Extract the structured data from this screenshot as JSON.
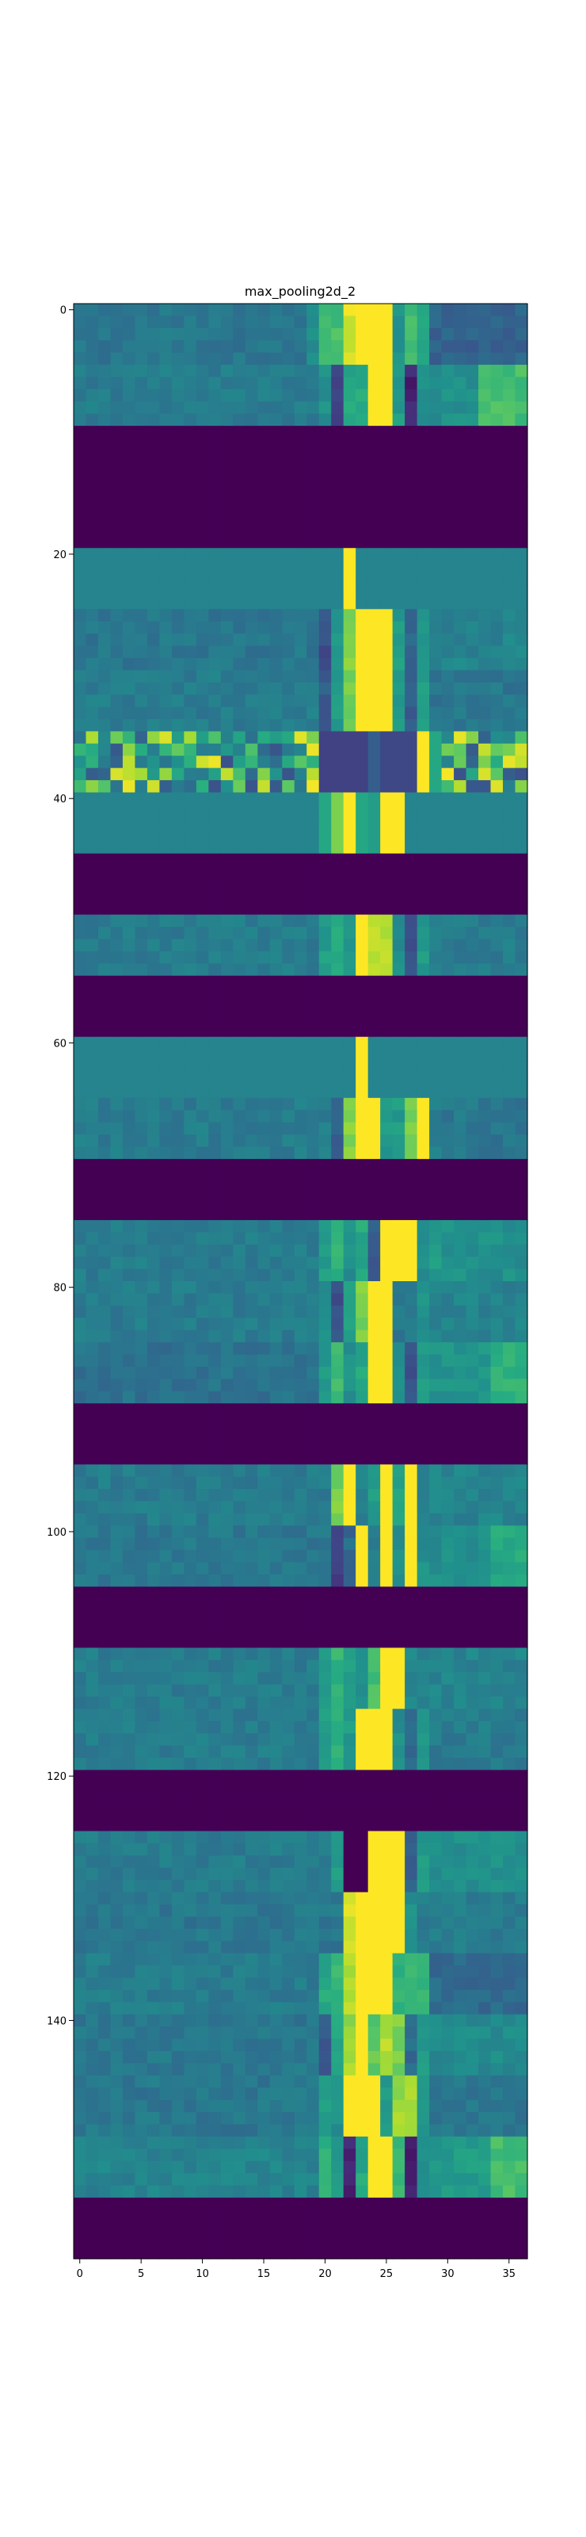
{
  "chart_data": {
    "type": "heatmap",
    "title": "max_pooling2d_2",
    "xlabel": "",
    "ylabel": "",
    "colormap": "viridis",
    "colors": [
      "#440154",
      "#3b528b",
      "#21918c",
      "#5ec962",
      "#fde725"
    ],
    "n_cols": 37,
    "n_rows": 160,
    "xlim": [
      -0.5,
      36.5
    ],
    "ylim": [
      159.5,
      -0.5
    ],
    "xticks": [
      0,
      5,
      10,
      15,
      20,
      25,
      30,
      35
    ],
    "yticks": [
      0,
      20,
      40,
      60,
      80,
      100,
      120,
      140
    ],
    "grid": false,
    "bands": [
      {
        "rows": [
          0,
          4
        ],
        "kind": "texture",
        "segments": [
          [
            0,
            19,
            0.4
          ],
          [
            19,
            20,
            0.5
          ],
          [
            20,
            22,
            0.7
          ],
          [
            22,
            23,
            0.95
          ],
          [
            23,
            26,
            1.0
          ],
          [
            26,
            27,
            0.5
          ],
          [
            27,
            28,
            0.7
          ],
          [
            28,
            29,
            0.6
          ],
          [
            29,
            37,
            0.32
          ]
        ]
      },
      {
        "rows": [
          5,
          9
        ],
        "kind": "texture",
        "segments": [
          [
            0,
            20,
            0.42
          ],
          [
            20,
            21,
            0.5
          ],
          [
            21,
            22,
            0.2
          ],
          [
            22,
            24,
            0.6
          ],
          [
            24,
            26,
            1.0
          ],
          [
            26,
            27,
            0.55
          ],
          [
            27,
            28,
            0.1
          ],
          [
            28,
            29,
            0.5
          ],
          [
            29,
            33,
            0.5
          ],
          [
            33,
            37,
            0.7
          ]
        ]
      },
      {
        "rows": [
          10,
          19
        ],
        "kind": "flat",
        "v": 0.0
      },
      {
        "rows": [
          20,
          24
        ],
        "kind": "flat",
        "v": 0.45,
        "segments": [
          [
            22,
            23,
            1.0
          ]
        ]
      },
      {
        "rows": [
          25,
          29
        ],
        "kind": "texture",
        "segments": [
          [
            0,
            20,
            0.4
          ],
          [
            20,
            21,
            0.25
          ],
          [
            21,
            22,
            0.55
          ],
          [
            22,
            23,
            0.8
          ],
          [
            23,
            26,
            1.0
          ],
          [
            26,
            27,
            0.55
          ],
          [
            27,
            28,
            0.35
          ],
          [
            28,
            29,
            0.55
          ],
          [
            29,
            37,
            0.45
          ]
        ]
      },
      {
        "rows": [
          30,
          34
        ],
        "kind": "texture",
        "segments": [
          [
            0,
            20,
            0.42
          ],
          [
            20,
            21,
            0.3
          ],
          [
            21,
            22,
            0.55
          ],
          [
            22,
            23,
            0.8
          ],
          [
            23,
            26,
            1.0
          ],
          [
            26,
            27,
            0.55
          ],
          [
            27,
            28,
            0.3
          ],
          [
            28,
            29,
            0.55
          ],
          [
            29,
            37,
            0.4
          ]
        ]
      },
      {
        "rows": [
          35,
          39
        ],
        "kind": "noisy",
        "segments": [
          [
            20,
            24,
            0.2
          ],
          [
            24,
            25,
            0.3
          ],
          [
            25,
            28,
            0.22
          ],
          [
            28,
            29,
            1.0
          ],
          [
            29,
            30,
            0.6
          ]
        ]
      },
      {
        "rows": [
          40,
          44
        ],
        "kind": "flat",
        "v": 0.45,
        "segments": [
          [
            20,
            21,
            0.6
          ],
          [
            21,
            22,
            0.8
          ],
          [
            22,
            23,
            1.0
          ],
          [
            23,
            24,
            0.6
          ],
          [
            24,
            25,
            0.55
          ],
          [
            25,
            27,
            1.0
          ]
        ]
      },
      {
        "rows": [
          45,
          49
        ],
        "kind": "flat",
        "v": 0.0
      },
      {
        "rows": [
          50,
          54
        ],
        "kind": "texture",
        "segments": [
          [
            0,
            20,
            0.42
          ],
          [
            20,
            21,
            0.55
          ],
          [
            21,
            22,
            0.6
          ],
          [
            22,
            23,
            0.5
          ],
          [
            23,
            24,
            1.0
          ],
          [
            24,
            26,
            0.9
          ],
          [
            26,
            27,
            0.5
          ],
          [
            27,
            28,
            0.25
          ],
          [
            28,
            29,
            0.55
          ],
          [
            29,
            37,
            0.42
          ]
        ]
      },
      {
        "rows": [
          55,
          59
        ],
        "kind": "flat",
        "v": 0.0
      },
      {
        "rows": [
          60,
          64
        ],
        "kind": "flat",
        "v": 0.45,
        "segments": [
          [
            23,
            24,
            1.0
          ]
        ]
      },
      {
        "rows": [
          65,
          69
        ],
        "kind": "texture",
        "segments": [
          [
            0,
            21,
            0.42
          ],
          [
            21,
            22,
            0.3
          ],
          [
            22,
            23,
            0.8
          ],
          [
            23,
            25,
            1.0
          ],
          [
            25,
            27,
            0.55
          ],
          [
            27,
            28,
            0.8
          ],
          [
            28,
            29,
            1.0
          ],
          [
            29,
            30,
            0.45
          ],
          [
            30,
            37,
            0.4
          ]
        ]
      },
      {
        "rows": [
          70,
          74
        ],
        "kind": "flat",
        "v": 0.0
      },
      {
        "rows": [
          75,
          79
        ],
        "kind": "texture",
        "segments": [
          [
            0,
            20,
            0.42
          ],
          [
            20,
            21,
            0.55
          ],
          [
            21,
            22,
            0.65
          ],
          [
            22,
            23,
            0.5
          ],
          [
            23,
            24,
            0.6
          ],
          [
            24,
            25,
            0.3
          ],
          [
            25,
            28,
            1.0
          ],
          [
            28,
            29,
            0.5
          ],
          [
            29,
            30,
            0.55
          ],
          [
            30,
            37,
            0.5
          ]
        ]
      },
      {
        "rows": [
          80,
          84
        ],
        "kind": "texture",
        "segments": [
          [
            0,
            20,
            0.42
          ],
          [
            20,
            21,
            0.5
          ],
          [
            21,
            22,
            0.25
          ],
          [
            22,
            23,
            0.55
          ],
          [
            23,
            24,
            0.8
          ],
          [
            24,
            26,
            1.0
          ],
          [
            26,
            28,
            0.4
          ],
          [
            28,
            29,
            0.5
          ],
          [
            29,
            37,
            0.45
          ]
        ]
      },
      {
        "rows": [
          85,
          89
        ],
        "kind": "texture",
        "segments": [
          [
            0,
            20,
            0.38
          ],
          [
            20,
            21,
            0.55
          ],
          [
            21,
            22,
            0.7
          ],
          [
            22,
            23,
            0.5
          ],
          [
            23,
            24,
            0.6
          ],
          [
            24,
            26,
            1.0
          ],
          [
            26,
            27,
            0.5
          ],
          [
            27,
            28,
            0.25
          ],
          [
            28,
            29,
            0.55
          ],
          [
            29,
            34,
            0.52
          ],
          [
            34,
            37,
            0.65
          ]
        ]
      },
      {
        "rows": [
          90,
          94
        ],
        "kind": "flat",
        "v": 0.0
      },
      {
        "rows": [
          95,
          99
        ],
        "kind": "texture",
        "segments": [
          [
            0,
            21,
            0.42
          ],
          [
            21,
            22,
            0.8
          ],
          [
            22,
            23,
            1.0
          ],
          [
            23,
            24,
            0.45
          ],
          [
            24,
            25,
            0.55
          ],
          [
            25,
            26,
            1.0
          ],
          [
            26,
            27,
            0.6
          ],
          [
            27,
            28,
            1.0
          ],
          [
            28,
            29,
            0.45
          ],
          [
            29,
            37,
            0.45
          ]
        ]
      },
      {
        "rows": [
          100,
          104
        ],
        "kind": "texture",
        "segments": [
          [
            0,
            21,
            0.4
          ],
          [
            21,
            22,
            0.2
          ],
          [
            22,
            23,
            0.35
          ],
          [
            23,
            24,
            1.0
          ],
          [
            24,
            25,
            0.4
          ],
          [
            25,
            26,
            1.0
          ],
          [
            26,
            27,
            0.5
          ],
          [
            27,
            28,
            1.0
          ],
          [
            28,
            29,
            0.5
          ],
          [
            29,
            34,
            0.5
          ],
          [
            34,
            37,
            0.6
          ]
        ]
      },
      {
        "rows": [
          105,
          109
        ],
        "kind": "flat",
        "v": 0.0
      },
      {
        "rows": [
          110,
          114
        ],
        "kind": "texture",
        "segments": [
          [
            0,
            20,
            0.42
          ],
          [
            20,
            21,
            0.55
          ],
          [
            21,
            22,
            0.65
          ],
          [
            22,
            23,
            0.55
          ],
          [
            23,
            24,
            0.5
          ],
          [
            24,
            25,
            0.7
          ],
          [
            25,
            27,
            1.0
          ],
          [
            27,
            28,
            0.45
          ],
          [
            28,
            37,
            0.45
          ]
        ]
      },
      {
        "rows": [
          115,
          119
        ],
        "kind": "texture",
        "segments": [
          [
            0,
            20,
            0.42
          ],
          [
            20,
            21,
            0.55
          ],
          [
            21,
            22,
            0.65
          ],
          [
            22,
            23,
            0.55
          ],
          [
            23,
            26,
            1.0
          ],
          [
            26,
            27,
            0.5
          ],
          [
            27,
            28,
            0.35
          ],
          [
            28,
            29,
            0.55
          ],
          [
            29,
            37,
            0.42
          ]
        ]
      },
      {
        "rows": [
          120,
          124
        ],
        "kind": "flat",
        "v": 0.0
      },
      {
        "rows": [
          125,
          129
        ],
        "kind": "texture",
        "segments": [
          [
            0,
            21,
            0.42
          ],
          [
            21,
            22,
            0.55
          ],
          [
            22,
            24,
            0.0
          ],
          [
            24,
            27,
            1.0
          ],
          [
            27,
            28,
            0.3
          ],
          [
            28,
            29,
            0.55
          ],
          [
            29,
            37,
            0.5
          ]
        ]
      },
      {
        "rows": [
          130,
          134
        ],
        "kind": "texture",
        "segments": [
          [
            0,
            22,
            0.4
          ],
          [
            22,
            23,
            0.95
          ],
          [
            23,
            27,
            1.0
          ],
          [
            27,
            28,
            0.5
          ],
          [
            28,
            37,
            0.42
          ]
        ]
      },
      {
        "rows": [
          135,
          139
        ],
        "kind": "texture",
        "segments": [
          [
            0,
            20,
            0.42
          ],
          [
            20,
            21,
            0.6
          ],
          [
            21,
            22,
            0.65
          ],
          [
            22,
            23,
            0.9
          ],
          [
            23,
            26,
            1.0
          ],
          [
            26,
            29,
            0.65
          ],
          [
            29,
            37,
            0.35
          ]
        ]
      },
      {
        "rows": [
          140,
          144
        ],
        "kind": "texture",
        "segments": [
          [
            0,
            20,
            0.4
          ],
          [
            20,
            21,
            0.3
          ],
          [
            21,
            22,
            0.6
          ],
          [
            22,
            23,
            0.85
          ],
          [
            23,
            24,
            1.0
          ],
          [
            24,
            25,
            0.75
          ],
          [
            25,
            26,
            0.9
          ],
          [
            26,
            27,
            0.8
          ],
          [
            27,
            28,
            0.35
          ],
          [
            28,
            29,
            0.55
          ],
          [
            29,
            37,
            0.48
          ]
        ]
      },
      {
        "rows": [
          145,
          149
        ],
        "kind": "texture",
        "segments": [
          [
            0,
            20,
            0.4
          ],
          [
            20,
            21,
            0.55
          ],
          [
            21,
            22,
            0.5
          ],
          [
            22,
            25,
            1.0
          ],
          [
            25,
            26,
            0.55
          ],
          [
            26,
            28,
            0.85
          ],
          [
            28,
            29,
            0.5
          ],
          [
            29,
            37,
            0.4
          ]
        ]
      },
      {
        "rows": [
          150,
          154
        ],
        "kind": "texture",
        "segments": [
          [
            0,
            20,
            0.45
          ],
          [
            20,
            21,
            0.65
          ],
          [
            21,
            22,
            0.55
          ],
          [
            22,
            23,
            0.1
          ],
          [
            23,
            24,
            0.6
          ],
          [
            24,
            26,
            1.0
          ],
          [
            26,
            27,
            0.65
          ],
          [
            27,
            28,
            0.1
          ],
          [
            28,
            29,
            0.5
          ],
          [
            29,
            34,
            0.55
          ],
          [
            34,
            37,
            0.7
          ]
        ]
      },
      {
        "rows": [
          155,
          159
        ],
        "kind": "flat",
        "v": 0.0
      }
    ]
  }
}
